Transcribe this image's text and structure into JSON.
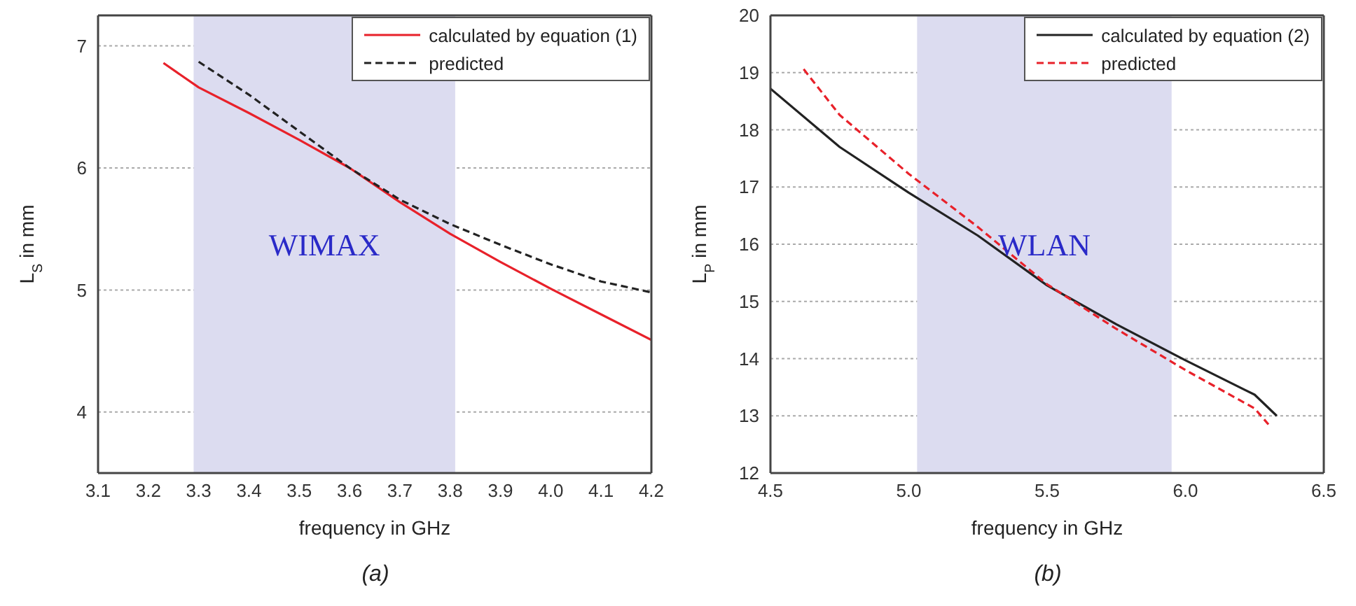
{
  "chart_data": [
    {
      "type": "line",
      "xlabel": "frequency in GHz",
      "ylabel": "L$_{S}$ in mm",
      "xlim": [
        3.1,
        4.2
      ],
      "xticks": [
        {
          "value": 3.1,
          "label": "3.1"
        },
        {
          "value": 3.2,
          "label": "3.2"
        },
        {
          "value": 3.3,
          "label": "3.3"
        },
        {
          "value": 3.4,
          "label": "3.4"
        },
        {
          "value": 3.5,
          "label": "3.5"
        },
        {
          "value": 3.6,
          "label": "3.6"
        },
        {
          "value": 3.7,
          "label": "3.7"
        },
        {
          "value": 3.8,
          "label": "3.8"
        },
        {
          "value": 3.9,
          "label": "3.9"
        },
        {
          "value": 4.0,
          "label": "4.0"
        },
        {
          "value": 4.1,
          "label": "4.1"
        },
        {
          "value": 4.2,
          "label": "4.2"
        }
      ],
      "ylim": [
        3.5,
        7.25
      ],
      "yticks": [
        4,
        5,
        6,
        7
      ],
      "grid": "y",
      "legend": "top right",
      "marker": "none",
      "annotations": [
        "(a)"
      ],
      "bands": [
        {
          "axis": "x",
          "from": 3.29,
          "to": 3.81,
          "label": "WIMAX",
          "color": "#dcdcf0"
        }
      ],
      "series": [
        {
          "name": "calculated by equation (1)",
          "color": "#e8212a",
          "line_style": "solid",
          "x": [
            3.23,
            3.3,
            3.4,
            3.5,
            3.6,
            3.7,
            3.8,
            3.9,
            4.0,
            4.1,
            4.2
          ],
          "values": [
            6.86,
            6.66,
            6.45,
            6.23,
            6.0,
            5.72,
            5.46,
            5.23,
            5.01,
            4.8,
            4.59
          ]
        },
        {
          "name": "predicted",
          "color": "#222222",
          "line_style": "dashed",
          "x": [
            3.3,
            3.4,
            3.5,
            3.6,
            3.7,
            3.8,
            3.9,
            4.0,
            4.1,
            4.2
          ],
          "values": [
            6.87,
            6.6,
            6.3,
            6.0,
            5.74,
            5.54,
            5.37,
            5.21,
            5.07,
            4.98
          ]
        }
      ]
    },
    {
      "type": "line",
      "xlabel": "frequency in GHz",
      "ylabel": "L$_{P}$ in mm",
      "xlim": [
        4.5,
        6.5
      ],
      "xticks": [
        {
          "value": 4.5,
          "label": "4.5"
        },
        {
          "value": 5.0,
          "label": "5.0"
        },
        {
          "value": 5.5,
          "label": "5.5"
        },
        {
          "value": 6.0,
          "label": "6.0"
        },
        {
          "value": 6.5,
          "label": "6.5"
        }
      ],
      "ylim": [
        12,
        20
      ],
      "yticks": [
        12,
        13,
        14,
        15,
        16,
        17,
        18,
        19,
        20
      ],
      "grid": "y",
      "legend": "top right",
      "marker": "none",
      "annotations": [
        "(b)"
      ],
      "bands": [
        {
          "axis": "x",
          "from": 5.03,
          "to": 5.95,
          "label": "WLAN",
          "color": "#dcdcf0"
        }
      ],
      "series": [
        {
          "name": "calculated by equation (2)",
          "color": "#222222",
          "line_style": "solid",
          "x": [
            4.5,
            4.75,
            5.0,
            5.25,
            5.5,
            5.75,
            6.0,
            6.25,
            6.33
          ],
          "values": [
            18.72,
            17.7,
            16.9,
            16.15,
            15.28,
            14.6,
            13.97,
            13.37,
            13.0
          ]
        },
        {
          "name": "predicted",
          "color": "#e8212a",
          "line_style": "dashed",
          "x": [
            4.62,
            4.75,
            5.0,
            5.25,
            5.5,
            5.75,
            6.0,
            6.25,
            6.3
          ],
          "values": [
            19.06,
            18.26,
            17.23,
            16.3,
            15.3,
            14.52,
            13.8,
            13.13,
            12.85
          ]
        }
      ]
    }
  ]
}
